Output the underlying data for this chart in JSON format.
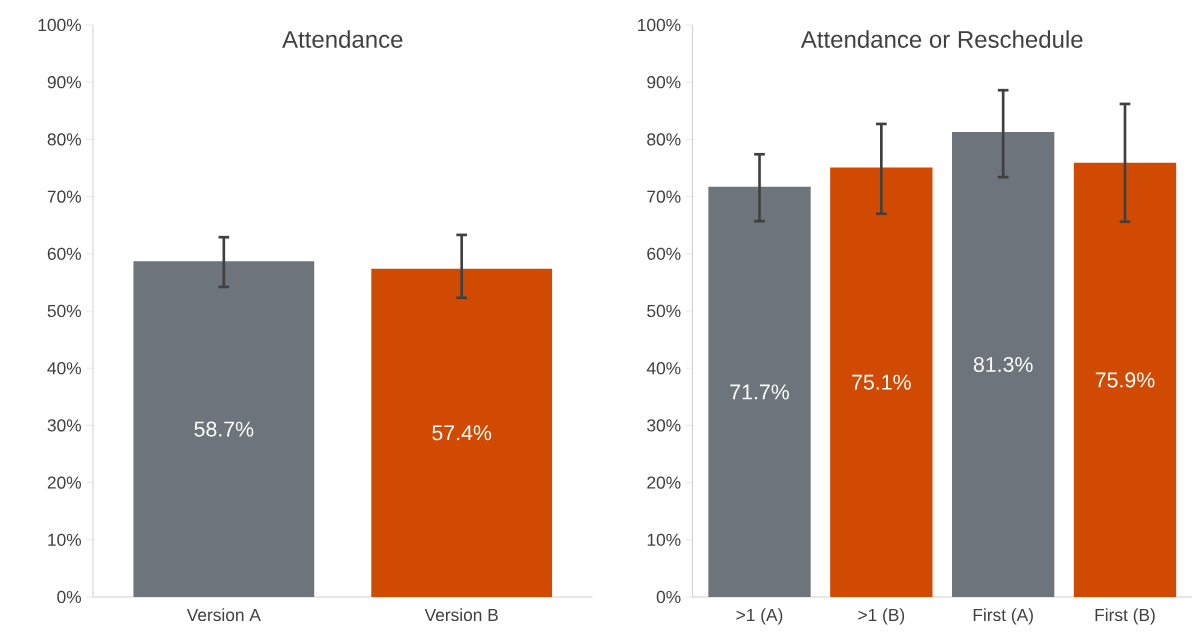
{
  "chart_data": [
    {
      "type": "bar",
      "title": "Attendance",
      "categories": [
        "Version A",
        "Version B"
      ],
      "values": [
        58.7,
        57.4
      ],
      "colors": [
        "#6d747c",
        "#d04a02"
      ],
      "errors": [
        [
          54.2,
          62.9
        ],
        [
          52.3,
          63.3
        ]
      ],
      "value_labels": [
        "58.7%",
        "57.4%"
      ],
      "ylim": [
        0,
        100
      ],
      "yticks": [
        {
          "value": 0,
          "label": "0%"
        },
        {
          "value": 10,
          "label": "10%"
        },
        {
          "value": 20,
          "label": "20%"
        },
        {
          "value": 30,
          "label": "30%"
        },
        {
          "value": 40,
          "label": "40%"
        },
        {
          "value": 50,
          "label": "50%"
        },
        {
          "value": 60,
          "label": "60%"
        },
        {
          "value": 70,
          "label": "70%"
        },
        {
          "value": 80,
          "label": "80%"
        },
        {
          "value": 90,
          "label": "90%"
        },
        {
          "value": 100,
          "label": "100%"
        }
      ],
      "grid": false
    },
    {
      "type": "bar",
      "title": "Attendance or Reschedule",
      "categories": [
        ">1 (A)",
        ">1 (B)",
        "First (A)",
        "First (B)"
      ],
      "values": [
        71.7,
        75.1,
        81.3,
        75.9
      ],
      "colors": [
        "#6d747c",
        "#d04a02",
        "#6d747c",
        "#d04a02"
      ],
      "errors": [
        [
          65.7,
          77.4
        ],
        [
          67.0,
          82.7
        ],
        [
          73.4,
          88.6
        ],
        [
          65.6,
          86.2
        ]
      ],
      "value_labels": [
        "71.7%",
        "75.1%",
        "81.3%",
        "75.9%"
      ],
      "ylim": [
        0,
        100
      ],
      "yticks": [
        {
          "value": 0,
          "label": "0%"
        },
        {
          "value": 10,
          "label": "10%"
        },
        {
          "value": 20,
          "label": "20%"
        },
        {
          "value": 30,
          "label": "30%"
        },
        {
          "value": 40,
          "label": "40%"
        },
        {
          "value": 50,
          "label": "50%"
        },
        {
          "value": 60,
          "label": "60%"
        },
        {
          "value": 70,
          "label": "70%"
        },
        {
          "value": 80,
          "label": "80%"
        },
        {
          "value": 90,
          "label": "90%"
        },
        {
          "value": 100,
          "label": "100%"
        }
      ],
      "grid": false
    }
  ]
}
